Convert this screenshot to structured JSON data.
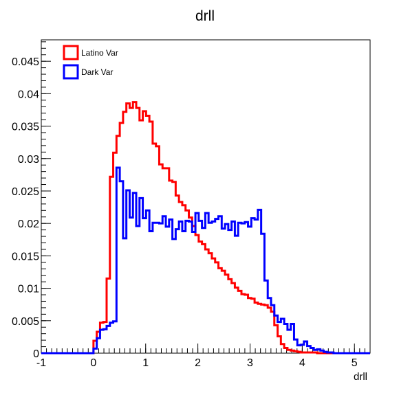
{
  "chart_data": {
    "type": "line",
    "title": "drll",
    "xlabel": "drll",
    "ylabel": "",
    "xlim": [
      -1,
      5.3
    ],
    "ylim": [
      0,
      0.0483
    ],
    "x_ticks": [
      -1,
      0,
      1,
      2,
      3,
      4,
      5
    ],
    "x_tick_labels": [
      "-1",
      "0",
      "1",
      "2",
      "3",
      "4",
      "5"
    ],
    "y_ticks": [
      0,
      0.005,
      0.01,
      0.015,
      0.02,
      0.025,
      0.03,
      0.035,
      0.04,
      0.045
    ],
    "y_tick_labels": [
      "0",
      "0.005",
      "0.01",
      "0.015",
      "0.02",
      "0.025",
      "0.03",
      "0.035",
      "0.04",
      "0.045"
    ],
    "bin_width": 0.063,
    "grid": false,
    "legend_position": "top-left",
    "series": [
      {
        "name": "Latino Var",
        "color": "#ff0000",
        "x": [
          -1.0,
          0.0,
          0.063,
          0.126,
          0.189,
          0.252,
          0.315,
          0.378,
          0.441,
          0.504,
          0.567,
          0.63,
          0.693,
          0.756,
          0.819,
          0.882,
          0.945,
          1.008,
          1.071,
          1.134,
          1.197,
          1.26,
          1.323,
          1.386,
          1.449,
          1.512,
          1.575,
          1.638,
          1.701,
          1.764,
          1.827,
          1.89,
          1.953,
          2.016,
          2.079,
          2.142,
          2.205,
          2.268,
          2.331,
          2.394,
          2.457,
          2.52,
          2.583,
          2.646,
          2.709,
          2.772,
          2.835,
          2.898,
          2.961,
          3.024,
          3.087,
          3.15,
          3.213,
          3.276,
          3.339,
          3.402,
          3.465,
          3.528,
          3.591,
          3.654,
          3.717,
          3.78,
          3.843,
          3.906,
          3.969,
          4.032,
          4.095,
          4.158,
          4.221,
          4.284,
          4.347,
          4.41,
          4.473,
          4.536,
          4.599
        ],
        "values": [
          0.0,
          0.0019,
          0.0033,
          0.0047,
          0.0048,
          0.0115,
          0.0272,
          0.0309,
          0.0335,
          0.0355,
          0.0372,
          0.0385,
          0.0378,
          0.0387,
          0.0378,
          0.0359,
          0.0373,
          0.0366,
          0.0357,
          0.0323,
          0.0319,
          0.0291,
          0.0285,
          0.0285,
          0.0266,
          0.0264,
          0.0243,
          0.0233,
          0.0228,
          0.022,
          0.0209,
          0.0196,
          0.0182,
          0.0172,
          0.0168,
          0.016,
          0.0154,
          0.0146,
          0.014,
          0.0131,
          0.0127,
          0.0121,
          0.0114,
          0.0108,
          0.0101,
          0.0096,
          0.0091,
          0.009,
          0.0085,
          0.0084,
          0.0078,
          0.0076,
          0.0075,
          0.0074,
          0.007,
          0.0064,
          0.0043,
          0.0026,
          0.0014,
          0.0008,
          0.0005,
          0.0004,
          0.0003,
          0.0002,
          0.0001,
          0.0001,
          0.0001,
          0.0001,
          0.0001,
          0.0,
          0.0,
          0.0,
          0.0,
          0.0,
          0.0
        ]
      },
      {
        "name": "Dark Var",
        "color": "#0000ff",
        "x": [
          -1.0,
          0.0,
          0.063,
          0.126,
          0.189,
          0.252,
          0.315,
          0.378,
          0.441,
          0.504,
          0.567,
          0.63,
          0.693,
          0.756,
          0.819,
          0.882,
          0.945,
          1.008,
          1.071,
          1.134,
          1.197,
          1.26,
          1.323,
          1.386,
          1.449,
          1.512,
          1.575,
          1.638,
          1.701,
          1.764,
          1.827,
          1.89,
          1.953,
          2.016,
          2.079,
          2.142,
          2.205,
          2.268,
          2.331,
          2.394,
          2.457,
          2.52,
          2.583,
          2.646,
          2.709,
          2.772,
          2.835,
          2.898,
          2.961,
          3.024,
          3.087,
          3.15,
          3.213,
          3.276,
          3.339,
          3.402,
          3.465,
          3.528,
          3.591,
          3.654,
          3.717,
          3.78,
          3.843,
          3.906,
          3.969,
          4.032,
          4.095,
          4.158,
          4.221,
          4.284,
          4.347,
          4.41,
          4.473,
          4.536,
          4.599
        ],
        "values": [
          0.0,
          0.0007,
          0.0023,
          0.0036,
          0.0037,
          0.0042,
          0.0047,
          0.0049,
          0.0286,
          0.0265,
          0.0177,
          0.0251,
          0.0209,
          0.0247,
          0.0196,
          0.0239,
          0.0208,
          0.022,
          0.0188,
          0.0201,
          0.0201,
          0.02,
          0.0211,
          0.0195,
          0.0206,
          0.0176,
          0.0191,
          0.0203,
          0.0188,
          0.0204,
          0.0203,
          0.0187,
          0.0216,
          0.0204,
          0.0193,
          0.0216,
          0.0201,
          0.0203,
          0.0207,
          0.0211,
          0.0192,
          0.0199,
          0.019,
          0.0203,
          0.0181,
          0.0201,
          0.02,
          0.0202,
          0.0195,
          0.0208,
          0.0206,
          0.0221,
          0.0184,
          0.0112,
          0.0085,
          0.0074,
          0.0058,
          0.0048,
          0.0053,
          0.0045,
          0.0036,
          0.0045,
          0.0021,
          0.0012,
          0.0013,
          0.0018,
          0.0011,
          0.0008,
          0.0005,
          0.0006,
          0.0004,
          0.0002,
          0.0001,
          0.0001,
          0.0
        ]
      }
    ]
  }
}
